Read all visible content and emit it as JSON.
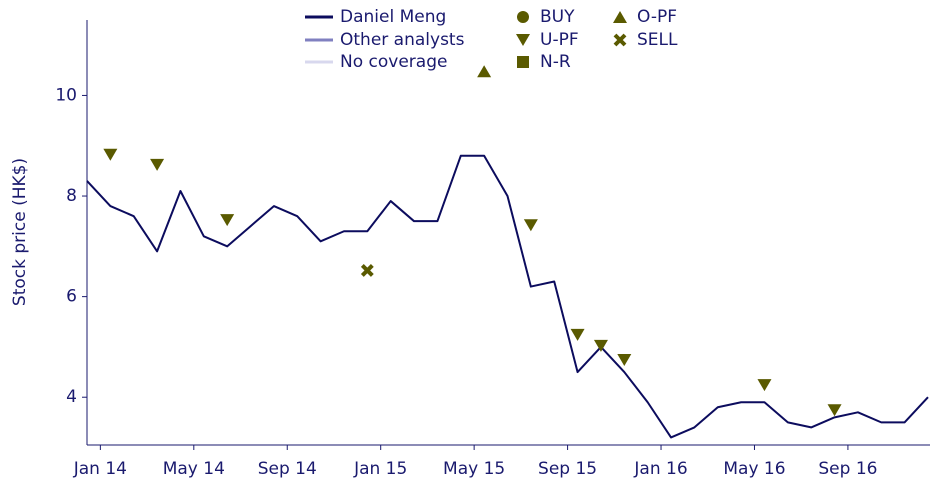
{
  "chart_data": {
    "type": "line",
    "ylabel": "Stock price (HK$)",
    "ylim": [
      3.05,
      11.5
    ],
    "yticks": [
      4,
      6,
      8,
      10
    ],
    "xlim": [
      "2013-12",
      "2016-12"
    ],
    "xticks": [
      {
        "value": "2014-01",
        "label": "Jan 14"
      },
      {
        "value": "2014-05",
        "label": "May 14"
      },
      {
        "value": "2014-09",
        "label": "Sep 14"
      },
      {
        "value": "2015-01",
        "label": "Jan 15"
      },
      {
        "value": "2015-05",
        "label": "May 15"
      },
      {
        "value": "2015-09",
        "label": "Sep 15"
      },
      {
        "value": "2016-01",
        "label": "Jan 16"
      },
      {
        "value": "2016-05",
        "label": "May 16"
      },
      {
        "value": "2016-09",
        "label": "Sep 16"
      }
    ],
    "x": [
      "2013-12",
      "2014-01",
      "2014-02",
      "2014-03",
      "2014-04",
      "2014-05",
      "2014-06",
      "2014-07",
      "2014-08",
      "2014-09",
      "2014-10",
      "2014-11",
      "2014-12",
      "2015-01",
      "2015-02",
      "2015-03",
      "2015-04",
      "2015-05",
      "2015-06",
      "2015-07",
      "2015-08",
      "2015-09",
      "2015-10",
      "2015-11",
      "2015-12",
      "2016-01",
      "2016-02",
      "2016-03",
      "2016-04",
      "2016-05",
      "2016-06",
      "2016-07",
      "2016-08",
      "2016-09",
      "2016-10",
      "2016-11",
      "2016-12"
    ],
    "series": [
      {
        "name": "Daniel Meng",
        "color": "#0c0c5e",
        "values": [
          8.3,
          7.8,
          7.6,
          6.9,
          8.1,
          7.2,
          7.0,
          7.4,
          7.8,
          7.6,
          7.1,
          7.3,
          7.3,
          7.9,
          7.5,
          7.5,
          8.8,
          8.8,
          8.0,
          6.2,
          6.3,
          4.5,
          5.0,
          4.5,
          3.9,
          3.2,
          3.4,
          3.8,
          3.9,
          3.9,
          3.5,
          3.4,
          3.6,
          3.7,
          3.5,
          3.5,
          4.0
        ]
      }
    ],
    "legend": [
      {
        "name": "Daniel Meng",
        "color": "#0c0c5e",
        "symbol": "line"
      },
      {
        "name": "Other analysts",
        "color": "#8080c0",
        "symbol": "line"
      },
      {
        "name": "No coverage",
        "color": "#d8d8ee",
        "symbol": "line"
      },
      {
        "name": "BUY",
        "color": "#5a5a00",
        "symbol": "circle"
      },
      {
        "name": "U-PF",
        "color": "#5a5a00",
        "symbol": "triangle-down"
      },
      {
        "name": "N-R",
        "color": "#5a5a00",
        "symbol": "square"
      },
      {
        "name": "O-PF",
        "color": "#5a5a00",
        "symbol": "triangle-up"
      },
      {
        "name": "SELL",
        "color": "#5a5a00",
        "symbol": "cross"
      }
    ],
    "ratings": [
      {
        "rating": "U-PF",
        "x": "2014-01",
        "value": 8.82
      },
      {
        "rating": "U-PF",
        "x": "2014-03",
        "value": 8.62
      },
      {
        "rating": "U-PF",
        "x": "2014-06",
        "value": 7.52
      },
      {
        "rating": "SELL",
        "x": "2014-12",
        "value": 6.52
      },
      {
        "rating": "O-PF",
        "x": "2015-05",
        "value": 10.48
      },
      {
        "rating": "U-PF",
        "x": "2015-07",
        "value": 7.42
      },
      {
        "rating": "U-PF",
        "x": "2015-09",
        "value": 5.24
      },
      {
        "rating": "U-PF",
        "x": "2015-10",
        "value": 5.02
      },
      {
        "rating": "U-PF",
        "x": "2015-11",
        "value": 4.74
      },
      {
        "rating": "U-PF",
        "x": "2016-05",
        "value": 4.24
      },
      {
        "rating": "U-PF",
        "x": "2016-08",
        "value": 3.74
      }
    ]
  }
}
